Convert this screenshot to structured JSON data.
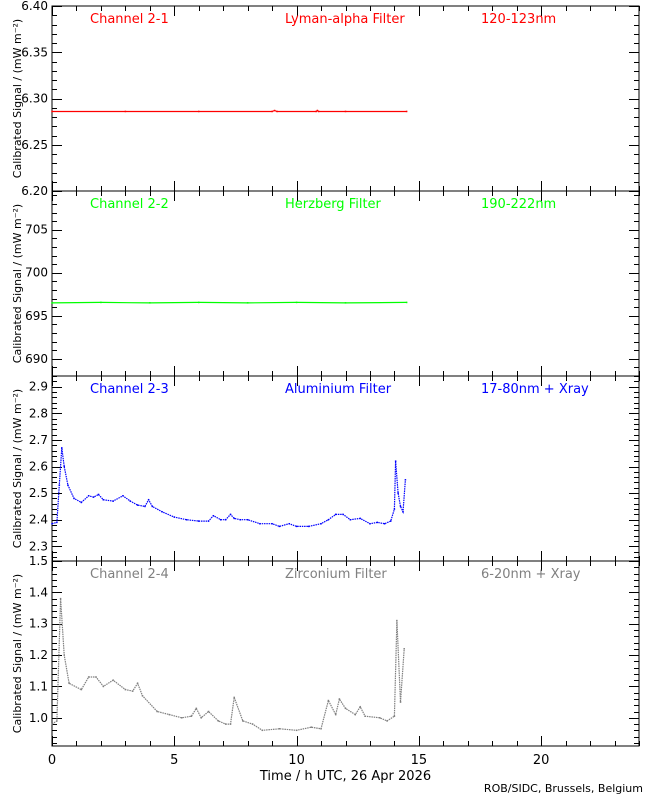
{
  "chart_data": [
    {
      "type": "scatter",
      "labels": {
        "channel": "Channel 2-1",
        "filter": "Lyman-alpha Filter",
        "band": "120-123nm"
      },
      "ylabel": "Calibrated Signal / (mW m⁻²)",
      "color": "#ff0000",
      "ylim": [
        6.2,
        6.4
      ],
      "yticks": [
        "6.20",
        "6.25",
        "6.30",
        "6.35",
        "6.40"
      ],
      "yticks_values": [
        6.2,
        6.25,
        6.3,
        6.35,
        6.4
      ],
      "ymajor": 0.05,
      "yminor": 0.01,
      "points": [
        [
          0,
          6.286
        ],
        [
          3,
          6.286
        ],
        [
          6,
          6.286
        ],
        [
          9,
          6.286
        ],
        [
          9.1,
          6.287
        ],
        [
          9.2,
          6.286
        ],
        [
          10.8,
          6.286
        ],
        [
          10.85,
          6.287
        ],
        [
          10.9,
          6.286
        ],
        [
          12,
          6.286
        ],
        [
          14.5,
          6.286
        ]
      ]
    },
    {
      "type": "scatter",
      "labels": {
        "channel": "Channel 2-2",
        "filter": "Herzberg Filter",
        "band": "190-222nm"
      },
      "ylabel": "Calibrated Signal / (mW m⁻²)",
      "color": "#00ff00",
      "ylim": [
        688,
        709.5
      ],
      "yticks": [
        "690",
        "695",
        "700",
        "705"
      ],
      "yticks_values": [
        690,
        695,
        700,
        705
      ],
      "ymajor": 5,
      "yminor": 1,
      "points": [
        [
          0,
          696.5
        ],
        [
          2,
          696.55
        ],
        [
          4,
          696.5
        ],
        [
          6,
          696.55
        ],
        [
          8,
          696.5
        ],
        [
          10,
          696.55
        ],
        [
          12,
          696.5
        ],
        [
          14.5,
          696.55
        ]
      ]
    },
    {
      "type": "scatter",
      "labels": {
        "channel": "Channel 2-3",
        "filter": "Aluminium Filter",
        "band": "17-80nm + Xray"
      },
      "ylabel": "Calibrated Signal / (mW m⁻²)",
      "color": "#0000ff",
      "ylim": [
        2.245,
        2.94
      ],
      "yticks": [
        "2.3",
        "2.4",
        "2.5",
        "2.6",
        "2.7",
        "2.8",
        "2.9"
      ],
      "yticks_values": [
        2.3,
        2.4,
        2.5,
        2.6,
        2.7,
        2.8,
        2.9
      ],
      "ymajor": 0.1,
      "yminor": 0.02,
      "points": [
        [
          0,
          2.385
        ],
        [
          0.2,
          2.39
        ],
        [
          0.3,
          2.53
        ],
        [
          0.4,
          2.67
        ],
        [
          0.5,
          2.6
        ],
        [
          0.65,
          2.53
        ],
        [
          0.9,
          2.48
        ],
        [
          1.2,
          2.465
        ],
        [
          1.5,
          2.49
        ],
        [
          1.7,
          2.485
        ],
        [
          1.9,
          2.495
        ],
        [
          2.1,
          2.475
        ],
        [
          2.5,
          2.47
        ],
        [
          2.9,
          2.49
        ],
        [
          3.2,
          2.47
        ],
        [
          3.5,
          2.455
        ],
        [
          3.8,
          2.45
        ],
        [
          3.95,
          2.475
        ],
        [
          4.1,
          2.45
        ],
        [
          4.5,
          2.43
        ],
        [
          5.0,
          2.41
        ],
        [
          5.5,
          2.4
        ],
        [
          6.0,
          2.395
        ],
        [
          6.4,
          2.395
        ],
        [
          6.6,
          2.415
        ],
        [
          6.9,
          2.4
        ],
        [
          7.1,
          2.4
        ],
        [
          7.3,
          2.42
        ],
        [
          7.45,
          2.405
        ],
        [
          7.7,
          2.4
        ],
        [
          8.0,
          2.4
        ],
        [
          8.5,
          2.385
        ],
        [
          9.0,
          2.385
        ],
        [
          9.3,
          2.375
        ],
        [
          9.7,
          2.385
        ],
        [
          10.0,
          2.375
        ],
        [
          10.5,
          2.375
        ],
        [
          11.0,
          2.385
        ],
        [
          11.3,
          2.4
        ],
        [
          11.6,
          2.42
        ],
        [
          11.9,
          2.42
        ],
        [
          12.2,
          2.4
        ],
        [
          12.6,
          2.405
        ],
        [
          13.0,
          2.385
        ],
        [
          13.3,
          2.39
        ],
        [
          13.6,
          2.385
        ],
        [
          13.85,
          2.395
        ],
        [
          14.0,
          2.44
        ],
        [
          14.05,
          2.62
        ],
        [
          14.15,
          2.5
        ],
        [
          14.25,
          2.45
        ],
        [
          14.35,
          2.43
        ],
        [
          14.45,
          2.55
        ]
      ]
    },
    {
      "type": "scatter",
      "labels": {
        "channel": "Channel 2-4",
        "filter": "Zirconium Filter",
        "band": "6-20nm + Xray"
      },
      "ylabel": "Calibrated Signal / (mW m⁻²)",
      "color": "#808080",
      "ylim": [
        0.91,
        1.5
      ],
      "yticks": [
        "1.0",
        "1.1",
        "1.2",
        "1.3",
        "1.4",
        "1.5"
      ],
      "yticks_values": [
        1.0,
        1.1,
        1.2,
        1.3,
        1.4,
        1.5
      ],
      "ymajor": 0.1,
      "yminor": 0.02,
      "points": [
        [
          0,
          0.98
        ],
        [
          0.2,
          0.99
        ],
        [
          0.35,
          1.38
        ],
        [
          0.5,
          1.2
        ],
        [
          0.7,
          1.11
        ],
        [
          1.2,
          1.09
        ],
        [
          1.5,
          1.13
        ],
        [
          1.8,
          1.13
        ],
        [
          2.1,
          1.1
        ],
        [
          2.5,
          1.12
        ],
        [
          3.0,
          1.09
        ],
        [
          3.3,
          1.085
        ],
        [
          3.5,
          1.11
        ],
        [
          3.7,
          1.07
        ],
        [
          4.3,
          1.02
        ],
        [
          4.8,
          1.01
        ],
        [
          5.3,
          1.0
        ],
        [
          5.7,
          1.005
        ],
        [
          5.9,
          1.03
        ],
        [
          6.1,
          1.0
        ],
        [
          6.4,
          1.02
        ],
        [
          6.8,
          0.99
        ],
        [
          7.1,
          0.98
        ],
        [
          7.3,
          0.98
        ],
        [
          7.45,
          1.065
        ],
        [
          7.8,
          0.99
        ],
        [
          8.2,
          0.98
        ],
        [
          8.6,
          0.96
        ],
        [
          9.3,
          0.965
        ],
        [
          10.0,
          0.96
        ],
        [
          10.6,
          0.97
        ],
        [
          11.0,
          0.965
        ],
        [
          11.3,
          1.055
        ],
        [
          11.6,
          1.01
        ],
        [
          11.75,
          1.06
        ],
        [
          12.0,
          1.03
        ],
        [
          12.4,
          1.01
        ],
        [
          12.6,
          1.035
        ],
        [
          12.8,
          1.005
        ],
        [
          13.4,
          1.0
        ],
        [
          13.7,
          0.99
        ],
        [
          14.0,
          1.005
        ],
        [
          14.1,
          1.31
        ],
        [
          14.25,
          1.05
        ],
        [
          14.4,
          1.22
        ]
      ]
    }
  ],
  "xaxis": {
    "label": "Time / h UTC, 26 Apr 2026",
    "xlim": [
      0,
      24
    ],
    "ticks": [
      "0",
      "5",
      "10",
      "15",
      "20"
    ],
    "tick_values": [
      0,
      5,
      10,
      15,
      20
    ]
  },
  "credit": "ROB/SIDC, Brussels, Belgium"
}
